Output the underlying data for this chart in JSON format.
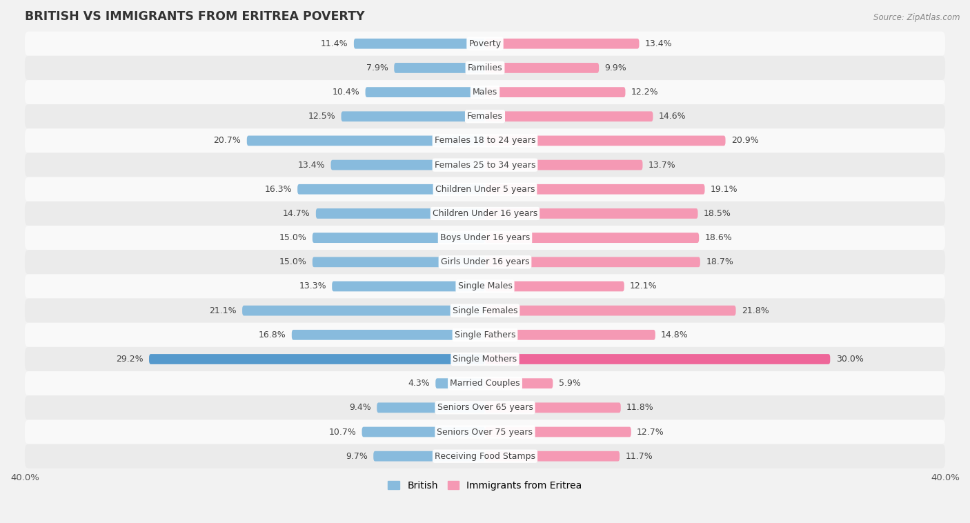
{
  "title": "BRITISH VS IMMIGRANTS FROM ERITREA POVERTY",
  "source": "Source: ZipAtlas.com",
  "categories": [
    "Poverty",
    "Families",
    "Males",
    "Females",
    "Females 18 to 24 years",
    "Females 25 to 34 years",
    "Children Under 5 years",
    "Children Under 16 years",
    "Boys Under 16 years",
    "Girls Under 16 years",
    "Single Males",
    "Single Females",
    "Single Fathers",
    "Single Mothers",
    "Married Couples",
    "Seniors Over 65 years",
    "Seniors Over 75 years",
    "Receiving Food Stamps"
  ],
  "british": [
    11.4,
    7.9,
    10.4,
    12.5,
    20.7,
    13.4,
    16.3,
    14.7,
    15.0,
    15.0,
    13.3,
    21.1,
    16.8,
    29.2,
    4.3,
    9.4,
    10.7,
    9.7
  ],
  "eritrea": [
    13.4,
    9.9,
    12.2,
    14.6,
    20.9,
    13.7,
    19.1,
    18.5,
    18.6,
    18.7,
    12.1,
    21.8,
    14.8,
    30.0,
    5.9,
    11.8,
    12.7,
    11.7
  ],
  "british_color": "#88bbdd",
  "eritrea_color": "#f599b4",
  "british_highlight_color": "#5599cc",
  "eritrea_highlight_color": "#ee6699",
  "background_color": "#f2f2f2",
  "row_odd_color": "#ebebeb",
  "row_even_color": "#f9f9f9",
  "axis_limit": 40.0,
  "bar_height": 0.42,
  "label_fontsize": 9.0,
  "value_fontsize": 9.0,
  "title_fontsize": 12.5,
  "source_fontsize": 8.5,
  "legend_british": "British",
  "legend_eritrea": "Immigrants from Eritrea"
}
